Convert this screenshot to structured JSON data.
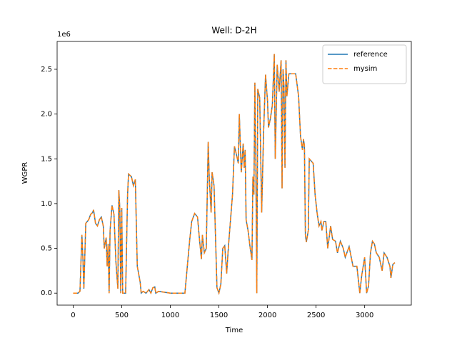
{
  "chart_data": {
    "type": "line",
    "title": "Well: D-2H",
    "x_label": "Time",
    "y_label": "WGPR",
    "y_offset_text": "1e6",
    "xlim": [
      -165,
      3480
    ],
    "ylim": [
      -134000,
      2811000
    ],
    "xticks": [
      0,
      500,
      1000,
      1500,
      2000,
      2500,
      3000
    ],
    "yticks": [
      {
        "value": 0,
        "label": "0.0"
      },
      {
        "value": 500000,
        "label": "0.5"
      },
      {
        "value": 1000000,
        "label": "1.0"
      },
      {
        "value": 1500000,
        "label": "1.5"
      },
      {
        "value": 2000000,
        "label": "2.0"
      },
      {
        "value": 2500000,
        "label": "2.5"
      }
    ],
    "grid": false,
    "legend": "upper right",
    "x": [
      0,
      50,
      70,
      90,
      100,
      110,
      130,
      160,
      180,
      200,
      210,
      230,
      250,
      270,
      290,
      310,
      320,
      340,
      350,
      360,
      370,
      380,
      400,
      420,
      440,
      460,
      470,
      480,
      490,
      500,
      510,
      540,
      560,
      570,
      600,
      620,
      640,
      650,
      660,
      690,
      700,
      720,
      750,
      780,
      800,
      820,
      840,
      850,
      880,
      1000,
      1150,
      1200,
      1220,
      1250,
      1280,
      1300,
      1320,
      1330,
      1350,
      1370,
      1390,
      1400,
      1420,
      1430,
      1450,
      1480,
      1500,
      1520,
      1540,
      1560,
      1580,
      1600,
      1640,
      1660,
      1680,
      1700,
      1710,
      1730,
      1750,
      1760,
      1770,
      1780,
      1800,
      1820,
      1840,
      1850,
      1860,
      1870,
      1880,
      1890,
      1900,
      1920,
      1940,
      1960,
      1980,
      2000,
      2010,
      2030,
      2050,
      2070,
      2080,
      2100,
      2120,
      2140,
      2150,
      2160,
      2170,
      2180,
      2190,
      2200,
      2220,
      2250,
      2290,
      2320,
      2340,
      2360,
      2370,
      2380,
      2390,
      2400,
      2420,
      2430,
      2470,
      2490,
      2510,
      2530,
      2550,
      2560,
      2580,
      2600,
      2620,
      2650,
      2670,
      2700,
      2720,
      2750,
      2780,
      2800,
      2840,
      2880,
      2920,
      2950,
      2970,
      3000,
      3020,
      3040,
      3060,
      3080,
      3100,
      3120,
      3150,
      3180,
      3200,
      3230,
      3260,
      3270,
      3290,
      3310
    ],
    "series": [
      {
        "name": "reference",
        "color": "#1f77b4",
        "linestyle": "solid",
        "values": [
          0,
          0,
          20000,
          650000,
          400000,
          50000,
          780000,
          820000,
          880000,
          900000,
          930000,
          780000,
          750000,
          820000,
          850000,
          750000,
          500000,
          620000,
          300000,
          550000,
          0,
          700000,
          980000,
          880000,
          350000,
          50000,
          1150000,
          950000,
          0,
          950000,
          0,
          0,
          1100000,
          1330000,
          1300000,
          1200000,
          1270000,
          780000,
          300000,
          120000,
          0,
          20000,
          0,
          40000,
          0,
          60000,
          70000,
          0,
          20000,
          0,
          0,
          600000,
          800000,
          890000,
          850000,
          600000,
          380000,
          650000,
          450000,
          500000,
          1690000,
          1300000,
          900000,
          1350000,
          1200000,
          60000,
          0,
          100000,
          500000,
          530000,
          220000,
          550000,
          1100000,
          1640000,
          1550000,
          1450000,
          2000000,
          1350000,
          1670000,
          1400000,
          1600000,
          820000,
          700000,
          520000,
          370000,
          1300000,
          1100000,
          2350000,
          1450000,
          0,
          2280000,
          2180000,
          900000,
          1800000,
          2440000,
          2150000,
          1850000,
          1950000,
          2100000,
          2670000,
          1500000,
          2550000,
          2250000,
          2600000,
          1170000,
          2500000,
          2300000,
          1400000,
          2600000,
          2200000,
          2450000,
          2450000,
          2450000,
          2200000,
          1750000,
          1600000,
          1720000,
          1650000,
          650000,
          570000,
          700000,
          1500000,
          1450000,
          1100000,
          900000,
          750000,
          800000,
          700000,
          800000,
          800000,
          500000,
          750000,
          600000,
          580000,
          450000,
          580000,
          500000,
          400000,
          520000,
          300000,
          300000,
          0,
          200000,
          400000,
          0,
          80000,
          450000,
          580000,
          550000,
          450000,
          400000,
          250000,
          450000,
          400000,
          300000,
          170000,
          320000,
          340000
        ]
      },
      {
        "name": "mysim",
        "color": "#ff7f0e",
        "linestyle": "dashed",
        "values": [
          0,
          0,
          20000,
          650000,
          400000,
          50000,
          780000,
          820000,
          880000,
          900000,
          930000,
          780000,
          750000,
          820000,
          850000,
          750000,
          500000,
          620000,
          300000,
          550000,
          0,
          700000,
          980000,
          880000,
          350000,
          50000,
          1150000,
          950000,
          0,
          950000,
          0,
          0,
          1100000,
          1330000,
          1300000,
          1200000,
          1270000,
          780000,
          300000,
          120000,
          0,
          20000,
          0,
          40000,
          0,
          60000,
          70000,
          0,
          20000,
          0,
          0,
          600000,
          800000,
          890000,
          850000,
          600000,
          380000,
          650000,
          450000,
          500000,
          1690000,
          1300000,
          900000,
          1350000,
          1200000,
          60000,
          0,
          100000,
          500000,
          530000,
          220000,
          550000,
          1100000,
          1640000,
          1550000,
          1450000,
          2000000,
          1350000,
          1670000,
          1400000,
          1600000,
          820000,
          700000,
          520000,
          370000,
          1300000,
          1100000,
          2350000,
          1450000,
          0,
          2280000,
          2180000,
          900000,
          1800000,
          2440000,
          2150000,
          1850000,
          1950000,
          2100000,
          2670000,
          1500000,
          2550000,
          2250000,
          2600000,
          1170000,
          2500000,
          2300000,
          1400000,
          2600000,
          2200000,
          2450000,
          2450000,
          2450000,
          2200000,
          1750000,
          1600000,
          1720000,
          1650000,
          650000,
          570000,
          700000,
          1500000,
          1450000,
          1100000,
          900000,
          750000,
          800000,
          700000,
          800000,
          800000,
          500000,
          750000,
          600000,
          580000,
          450000,
          580000,
          500000,
          400000,
          520000,
          300000,
          300000,
          0,
          200000,
          400000,
          0,
          80000,
          450000,
          580000,
          550000,
          450000,
          400000,
          250000,
          450000,
          400000,
          300000,
          170000,
          320000,
          340000
        ]
      }
    ]
  }
}
